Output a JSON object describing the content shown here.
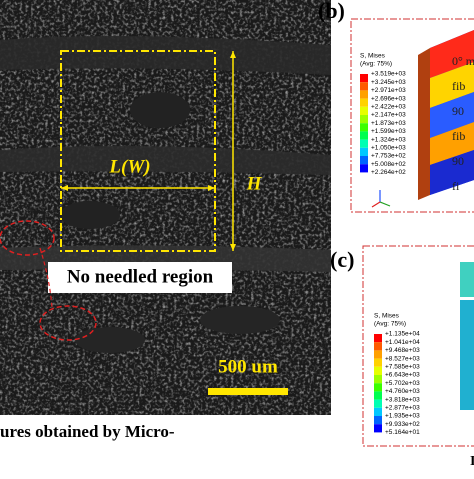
{
  "panel_a": {
    "width_label": "L(W)",
    "height_label": "H",
    "region_label": "No needled region",
    "scale_label": "500 um",
    "caption_fragment": "ures obtained by Micro-"
  },
  "panel_b": {
    "label": "(b)",
    "legend_title": "S, Mises",
    "legend_subtitle": "(Avg: 75%)",
    "legend_values": [
      "+3.519e+03",
      "+3.245e+03",
      "+2.971e+03",
      "+2.696e+03",
      "+2.422e+03",
      "+2.147e+03",
      "+1.873e+03",
      "+1.599e+03",
      "+1.324e+03",
      "+1.050e+03",
      "+7.753e+02",
      "+5.008e+02",
      "+2.264e+02"
    ],
    "layer_labels": [
      "0° m",
      "fib",
      "90",
      "fib",
      "90",
      "fi"
    ]
  },
  "panel_c": {
    "label": "(c)",
    "legend_title": "S, Mises",
    "legend_subtitle": "(Avg: 75%)",
    "legend_values": [
      "+1.135e+04",
      "+1.041e+04",
      "+9.468e+03",
      "+8.527e+03",
      "+7.585e+03",
      "+6.643e+03",
      "+5.702e+03",
      "+4.760e+03",
      "+3.818e+03",
      "+2.877e+03",
      "+1.935e+03",
      "+9.933e+02",
      "+5.164e+01"
    ]
  }
}
